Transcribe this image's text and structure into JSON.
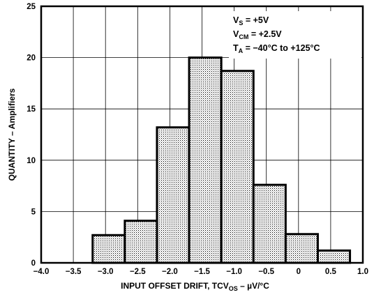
{
  "chart_data": {
    "type": "bar",
    "title": "",
    "bin_edges": [
      -3.2,
      -2.7,
      -2.2,
      -1.7,
      -1.2,
      -0.7,
      -0.2,
      0.3,
      0.8
    ],
    "values": [
      2.7,
      4.1,
      13.2,
      20.0,
      18.7,
      7.6,
      2.8,
      1.2
    ],
    "xlim": [
      -4.0,
      1.0
    ],
    "ylim": [
      0,
      25
    ],
    "x_ticks": [
      -4.0,
      -3.5,
      -3.0,
      -2.5,
      -2.0,
      -1.5,
      -1.0,
      -0.5,
      0,
      0.5,
      1.0
    ],
    "x_tick_labels": [
      "−4.0",
      "−3.5",
      "−3.0",
      "−2.5",
      "−2.0",
      "−1.5",
      "−1.0",
      "−0.5",
      "0",
      "0.5",
      "1.0"
    ],
    "y_ticks": [
      0,
      5,
      10,
      15,
      20,
      25
    ],
    "y_tick_labels": [
      "0",
      "5",
      "10",
      "15",
      "20",
      "25"
    ],
    "xlabel_main": "INPUT OFFSET DRIFT, TCV",
    "xlabel_sub": "OS",
    "xlabel_tail": " – µV/°C",
    "ylabel": "QUANTITY – Amplifiers",
    "grid": true,
    "bar_fill": "stippled",
    "annotations": [
      {
        "main": "V",
        "sub": "S",
        "rest": " = +5V"
      },
      {
        "main": "V",
        "sub": "CM",
        "rest": " = +2.5V"
      },
      {
        "main": "T",
        "sub": "A",
        "rest": " = −40°C to +125°C"
      }
    ]
  }
}
